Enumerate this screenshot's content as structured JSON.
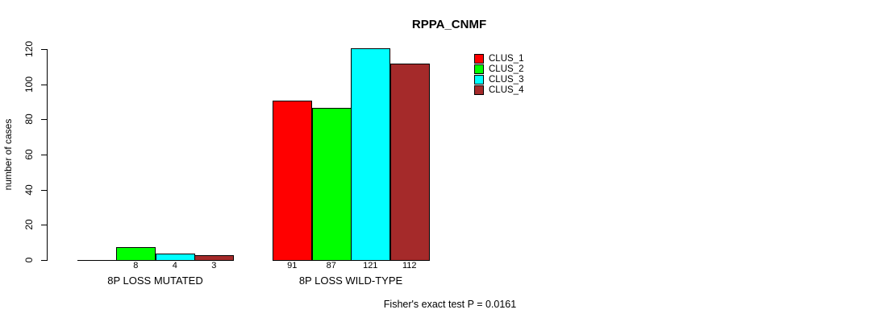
{
  "title": "RPPA_CNMF",
  "footer": "Fisher's exact test P = 0.0161",
  "colors": {
    "background": "#ffffff",
    "axis": "#000000",
    "clus_1": "#ff0000",
    "clus_2": "#00ff00",
    "clus_3": "#00ffff",
    "clus_4": "#a52a2a"
  },
  "chart_data": {
    "type": "bar",
    "title": "RPPA_CNMF",
    "xlabel": "",
    "ylabel": "number of cases",
    "categories": [
      "8P LOSS MUTATED",
      "8P LOSS WILD-TYPE"
    ],
    "series": [
      {
        "name": "CLUS_1",
        "color": "#ff0000",
        "values": [
          0,
          91
        ]
      },
      {
        "name": "CLUS_2",
        "color": "#00ff00",
        "values": [
          8,
          87
        ]
      },
      {
        "name": "CLUS_3",
        "color": "#00ffff",
        "values": [
          4,
          121
        ]
      },
      {
        "name": "CLUS_4",
        "color": "#a52a2a",
        "values": [
          3,
          112
        ]
      }
    ],
    "bar_labels": [
      [
        "",
        "8",
        "4",
        "3"
      ],
      [
        "91",
        "87",
        "121",
        "112"
      ]
    ],
    "yticks": [
      0,
      20,
      40,
      60,
      80,
      100,
      120
    ],
    "ylim": [
      0,
      120
    ],
    "grid": false,
    "legend_position": "top-right",
    "legend_entries": [
      "CLUS_1",
      "CLUS_2",
      "CLUS_3",
      "CLUS_4"
    ],
    "annotation": "Fisher's exact test P = 0.0161"
  }
}
